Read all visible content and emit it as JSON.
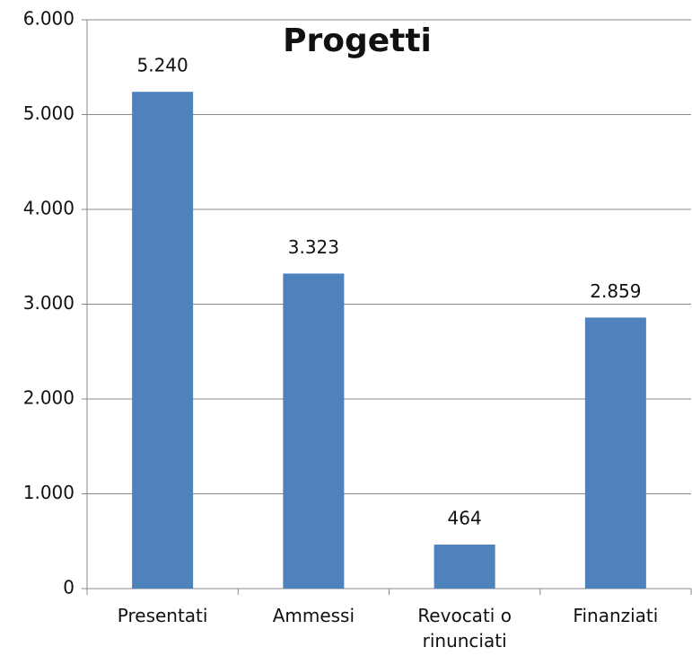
{
  "chart_data": {
    "type": "bar",
    "title": "Progetti",
    "categories": [
      "Presentati",
      "Ammessi",
      "Revocati o rinunciati",
      "Finanziati"
    ],
    "values": [
      5240,
      3323,
      464,
      2859
    ],
    "value_labels": [
      "5.240",
      "3.323",
      "464",
      "2.859"
    ],
    "color": "#4f81bd",
    "ylim": [
      0,
      6000
    ],
    "yticks": [
      0,
      {
        "value": 1000,
        "label": "1.000"
      },
      {
        "value": 2000,
        "label": "2.000"
      },
      {
        "value": 3000,
        "label": "3.000"
      },
      {
        "value": 4000,
        "label": "4.000"
      },
      {
        "value": 5000,
        "label": "5.000"
      },
      {
        "value": 6000,
        "label": "6.000"
      }
    ],
    "grid": true
  }
}
